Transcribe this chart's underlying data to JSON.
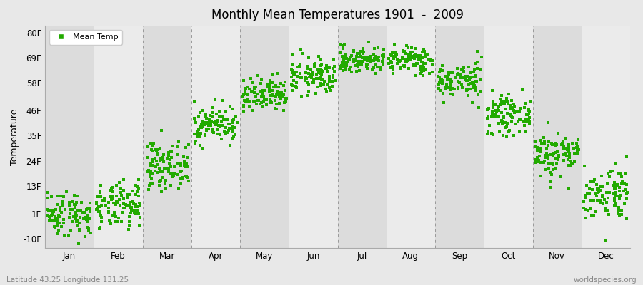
{
  "title": "Monthly Mean Temperatures 1901  -  2009",
  "ylabel": "Temperature",
  "ytick_labels": [
    "-10F",
    "1F",
    "13F",
    "24F",
    "35F",
    "46F",
    "58F",
    "69F",
    "80F"
  ],
  "ytick_values": [
    -10,
    1,
    13,
    24,
    35,
    46,
    58,
    69,
    80
  ],
  "ylim": [
    -14,
    83
  ],
  "month_labels": [
    "Jan",
    "Feb",
    "Mar",
    "Apr",
    "May",
    "Jun",
    "Jul",
    "Aug",
    "Sep",
    "Oct",
    "Nov",
    "Dec"
  ],
  "month_centers": [
    0.5,
    1.5,
    2.5,
    3.5,
    4.5,
    5.5,
    6.5,
    7.5,
    8.5,
    9.5,
    10.5,
    11.5
  ],
  "dot_color": "#22aa00",
  "figure_bg": "#e8e8e8",
  "band_even": "#dcdcdc",
  "band_odd": "#ebebeb",
  "legend_label": "Mean Temp",
  "bottom_left_text": "Latitude 43.25 Longitude 131.25",
  "bottom_right_text": "worldspecies.org",
  "num_years": 109,
  "seed": 42,
  "monthly_means": [
    1,
    4,
    22,
    40,
    52,
    61,
    68,
    68,
    59,
    44,
    27,
    10
  ],
  "monthly_stds": [
    5,
    5,
    5,
    4,
    4,
    4,
    3,
    3,
    4,
    4,
    5,
    6
  ]
}
